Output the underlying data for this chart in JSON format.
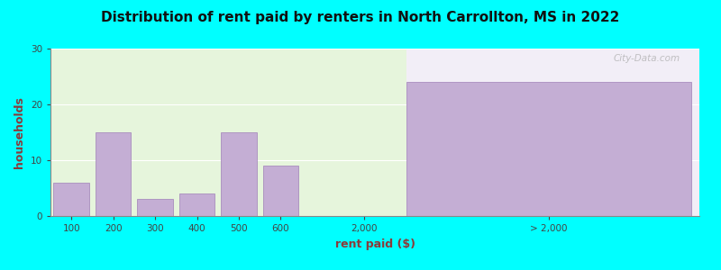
{
  "title": "Distribution of rent paid by renters in North Carrollton, MS in 2022",
  "xlabel": "rent paid ($)",
  "ylabel": "households",
  "bar_categories": [
    "100",
    "200",
    "300",
    "400",
    "500",
    "600"
  ],
  "bar_values": [
    6,
    15,
    3,
    4,
    15,
    9
  ],
  "bar_color": "#c4aed4",
  "bar_edge_color": "#a080b8",
  "special_bar_value": 24,
  "special_bar_color": "#c4aed4",
  "special_bar_edge_color": "#a080b8",
  "ylim": [
    0,
    30
  ],
  "yticks": [
    0,
    10,
    20,
    30
  ],
  "bg_color_left": "#e6f5dc",
  "bg_color_right": "#f2eef7",
  "outer_bg": "#00ffff",
  "title_fontsize": 11,
  "axis_label_fontsize": 9,
  "tick_fontsize": 7.5,
  "watermark": "City-Data.com"
}
